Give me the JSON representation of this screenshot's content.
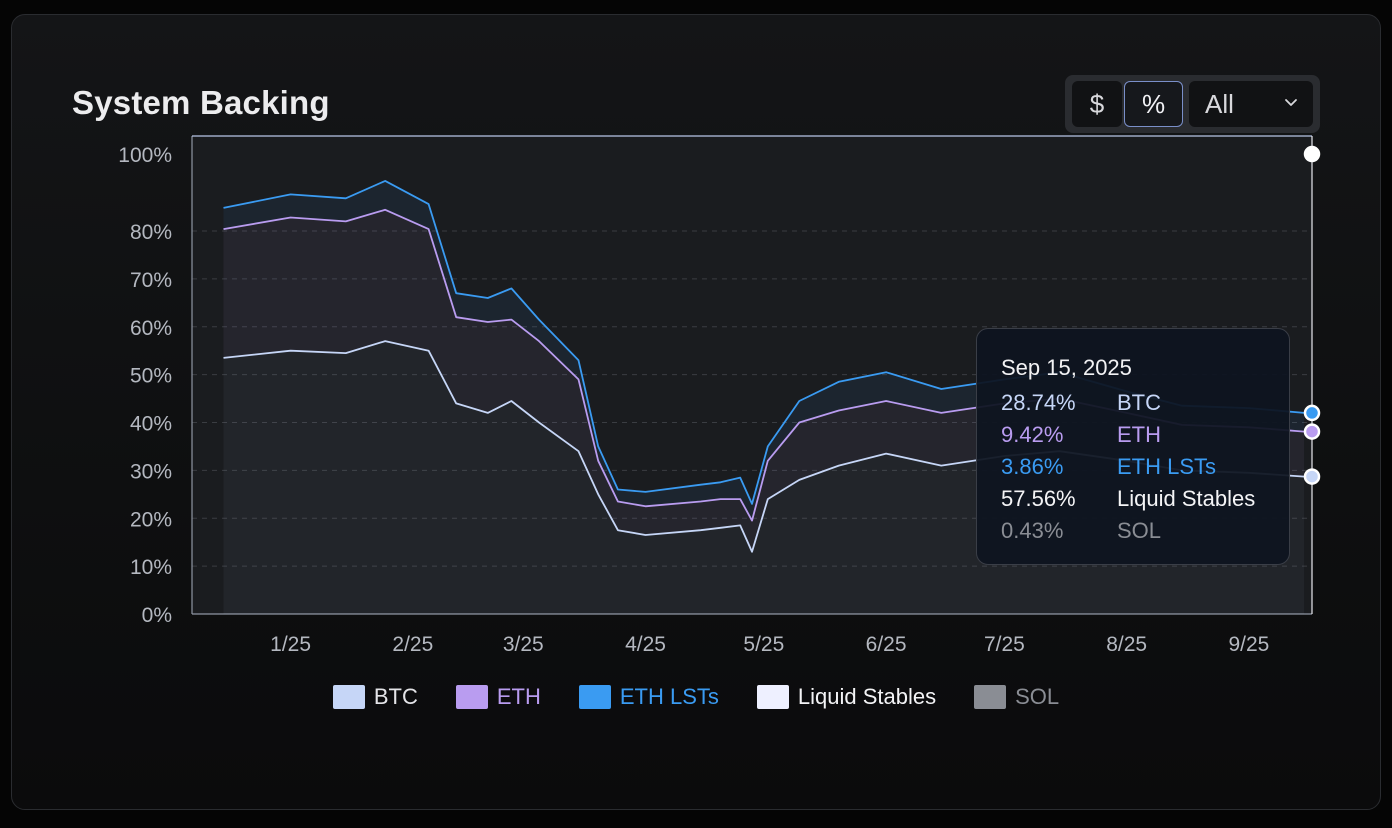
{
  "card": {
    "title": "System Backing",
    "unit_toggle": {
      "dollar_label": "$",
      "percent_label": "%",
      "active": "%"
    },
    "range_select": {
      "value": "All",
      "icon": "chevron-down-icon"
    }
  },
  "colors": {
    "BTC": "#c6d6f7",
    "ETH": "#b99cf0",
    "ETH LSTs": "#3a9bf2",
    "Liquid Stables": "#eef0ff",
    "SOL": "#8a8d94",
    "accent_border": "#7a8fc9"
  },
  "tooltip": {
    "date": "Sep 15, 2025",
    "rows": [
      {
        "value": "28.74%",
        "label": "BTC",
        "color": "#c6d6f7"
      },
      {
        "value": "9.42%",
        "label": "ETH",
        "color": "#b99cf0"
      },
      {
        "value": "3.86%",
        "label": "ETH LSTs",
        "color": "#3a9bf2"
      },
      {
        "value": "57.56%",
        "label": "Liquid Stables",
        "color": "#f4f4f6"
      },
      {
        "value": "0.43%",
        "label": "SOL",
        "color": "#8a8d94"
      }
    ]
  },
  "legend": [
    {
      "label": "BTC",
      "color": "#c6d6f7",
      "text_color": "#e4e4e8"
    },
    {
      "label": "ETH",
      "color": "#b99cf0",
      "text_color": "#b99cf0"
    },
    {
      "label": "ETH LSTs",
      "color": "#3a9bf2",
      "text_color": "#3a9bf2"
    },
    {
      "label": "Liquid Stables",
      "color": "#eef0ff",
      "text_color": "#f4f4f6"
    },
    {
      "label": "SOL",
      "color": "#8a8d94",
      "text_color": "#8a8d94"
    }
  ],
  "chart_data": {
    "type": "area",
    "title": "System Backing",
    "stacked": true,
    "y_unit": "%",
    "ylim": [
      0,
      100
    ],
    "y_ticks": [
      0,
      10,
      20,
      30,
      40,
      50,
      60,
      70,
      80,
      100
    ],
    "y_tick_labels": [
      "0%",
      "10%",
      "20%",
      "30%",
      "40%",
      "50%",
      "60%",
      "70%",
      "80%",
      "100%"
    ],
    "x_tick_labels": [
      "1/25",
      "2/25",
      "3/25",
      "4/25",
      "5/25",
      "6/25",
      "7/25",
      "8/25",
      "9/25"
    ],
    "x": [
      "2024-12-15",
      "2025-01-01",
      "2025-01-15",
      "2025-01-25",
      "2025-02-05",
      "2025-02-12",
      "2025-02-20",
      "2025-02-26",
      "2025-03-05",
      "2025-03-15",
      "2025-03-20",
      "2025-03-25",
      "2025-04-01",
      "2025-04-15",
      "2025-04-20",
      "2025-04-25",
      "2025-04-28",
      "2025-05-02",
      "2025-05-10",
      "2025-05-20",
      "2025-06-01",
      "2025-06-15",
      "2025-07-01",
      "2025-07-15",
      "2025-08-01",
      "2025-08-15",
      "2025-09-01",
      "2025-09-15"
    ],
    "series": [
      {
        "name": "BTC",
        "values": [
          53.5,
          55,
          54.5,
          57,
          55,
          44,
          42,
          44.5,
          40,
          34,
          25,
          17.5,
          16.5,
          17.5,
          18,
          18.5,
          13,
          24,
          28,
          31,
          33.5,
          31,
          33,
          34,
          32,
          30,
          29.5,
          28.7
        ]
      },
      {
        "name": "ETH",
        "values": [
          27,
          28.5,
          28,
          28.5,
          25.5,
          18,
          19,
          17,
          17,
          15,
          7,
          6,
          6,
          6,
          6,
          5.5,
          6.5,
          8,
          12,
          11.5,
          11,
          11,
          11,
          11,
          10,
          9.5,
          9.5,
          9.4
        ]
      },
      {
        "name": "ETH LSTs",
        "values": [
          5.5,
          6,
          6,
          7.5,
          6.5,
          5,
          5,
          6.5,
          4.5,
          4,
          3,
          2.5,
          3,
          3.5,
          3.5,
          4.5,
          3.5,
          3,
          4.5,
          6,
          6,
          5,
          5,
          5.5,
          4.5,
          4,
          4,
          3.9
        ]
      },
      {
        "name": "Liquid Stables",
        "values": [
          13.8,
          10.3,
          11.3,
          6.8,
          12.8,
          32.8,
          33.8,
          31.8,
          38.3,
          46.8,
          64.8,
          73.8,
          74.3,
          72.8,
          72.3,
          71.3,
          76.8,
          64.7,
          55.1,
          51.1,
          49.1,
          52.6,
          50.6,
          49.1,
          53.1,
          56.1,
          56.6,
          57.56
        ]
      },
      {
        "name": "SOL",
        "values": [
          0.2,
          0.2,
          0.2,
          0.2,
          0.2,
          0.2,
          0.2,
          0.2,
          0.2,
          0.2,
          0.2,
          0.2,
          0.2,
          0.2,
          0.2,
          0.2,
          0.2,
          0.3,
          0.4,
          0.4,
          0.4,
          0.4,
          0.4,
          0.4,
          0.4,
          0.4,
          0.4,
          0.43
        ]
      }
    ],
    "hover": {
      "x": "2025-09-15"
    },
    "grid": "dashed horizontal",
    "legend_position": "bottom-center"
  }
}
